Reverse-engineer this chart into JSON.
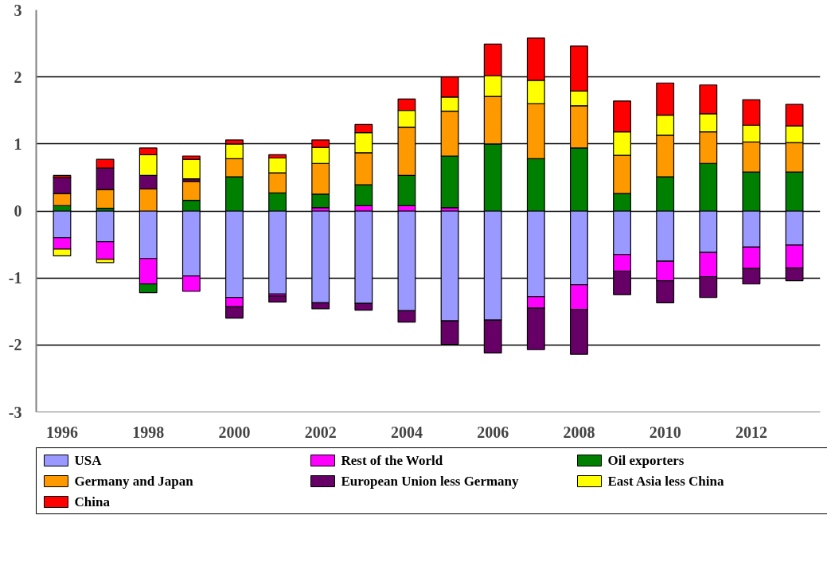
{
  "chart_data": {
    "type": "bar",
    "stacked": true,
    "categories": [
      "1996",
      null,
      "1998",
      null,
      "2000",
      null,
      "2002",
      null,
      "2004",
      null,
      "2006",
      null,
      "2008",
      null,
      "2010",
      null,
      "2012",
      null
    ],
    "ylim": [
      -3,
      3
    ],
    "yticks": [
      -3,
      -2,
      -1,
      0,
      1,
      2,
      3
    ],
    "grid": "y",
    "legend": "bottom",
    "series": [
      {
        "name": "USA",
        "color": "#9999ff",
        "values": [
          -0.4,
          -0.46,
          -0.71,
          -0.97,
          -1.29,
          -1.24,
          -1.37,
          -1.38,
          -1.49,
          -1.64,
          -1.63,
          -1.28,
          -1.1,
          -0.65,
          -0.75,
          -0.62,
          -0.54,
          -0.51
        ]
      },
      {
        "name": "Rest of the World",
        "color": "#ff00ff",
        "values": [
          -0.17,
          -0.26,
          -0.38,
          -0.23,
          -0.14,
          -0.03,
          0.05,
          0.08,
          0.08,
          0.05,
          null,
          -0.17,
          -0.37,
          -0.25,
          -0.29,
          -0.36,
          -0.32,
          -0.34
        ]
      },
      {
        "name": "Oil exporters",
        "color": "#008000",
        "values": [
          0.08,
          0.04,
          -0.13,
          0.16,
          0.51,
          0.27,
          0.2,
          0.31,
          0.45,
          0.77,
          1.0,
          0.78,
          0.94,
          0.26,
          0.51,
          0.71,
          0.58,
          0.58
        ]
      },
      {
        "name": "Germany and Japan",
        "color": "#ff9900",
        "values": [
          0.18,
          0.28,
          0.33,
          0.28,
          0.27,
          0.3,
          0.46,
          0.48,
          0.72,
          0.67,
          0.71,
          0.82,
          0.63,
          0.57,
          0.62,
          0.47,
          0.45,
          0.44
        ]
      },
      {
        "name": "European Union less Germany",
        "color": "#660066",
        "values": [
          0.24,
          0.32,
          0.2,
          0.04,
          -0.17,
          -0.09,
          -0.09,
          -0.1,
          -0.17,
          -0.35,
          -0.49,
          -0.62,
          -0.67,
          -0.35,
          -0.33,
          -0.31,
          -0.23,
          -0.19
        ]
      },
      {
        "name": "East Asia less China",
        "color": "#ffff00",
        "values": [
          -0.1,
          -0.05,
          0.31,
          0.29,
          0.22,
          0.22,
          0.24,
          0.3,
          0.25,
          0.21,
          0.31,
          0.35,
          0.22,
          0.35,
          0.3,
          0.27,
          0.25,
          0.25
        ]
      },
      {
        "name": "China",
        "color": "#ff0000",
        "values": [
          0.03,
          0.13,
          0.1,
          0.05,
          0.06,
          0.05,
          0.11,
          0.12,
          0.17,
          0.3,
          0.47,
          0.63,
          0.67,
          0.46,
          0.48,
          0.43,
          0.38,
          0.32
        ]
      }
    ]
  }
}
